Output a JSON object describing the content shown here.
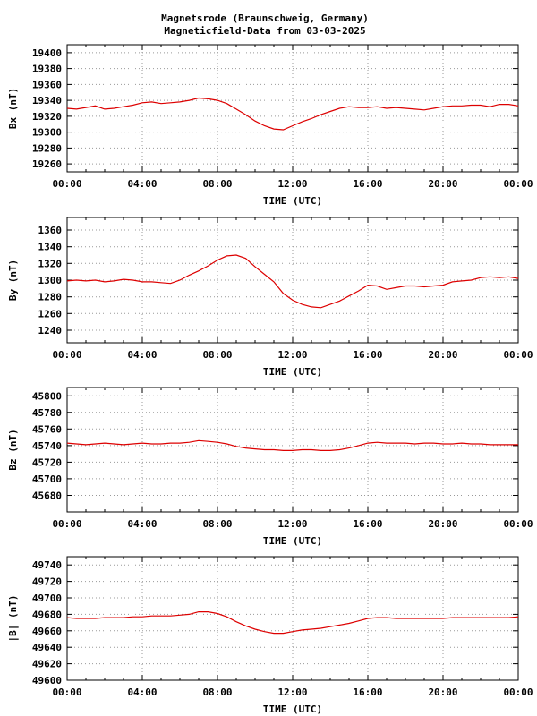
{
  "title_line1": "Magnetsrode (Braunschweig, Germany)",
  "title_line2": "Magneticfield-Data from 03-03-2025",
  "line_color": "#dd0000",
  "chart_data": [
    {
      "type": "line",
      "ylabel": "Bx (nT)",
      "xlabel": "TIME (UTC)",
      "xlim": [
        0,
        24
      ],
      "ylim": [
        19250,
        19410
      ],
      "yticks": [
        19260,
        19280,
        19300,
        19320,
        19340,
        19360,
        19380,
        19400
      ],
      "xtick_labels": [
        "00:00",
        "04:00",
        "08:00",
        "12:00",
        "16:00",
        "20:00",
        "00:00"
      ],
      "grid": true,
      "series": [
        {
          "x": [
            0,
            0.5,
            1,
            1.5,
            2,
            2.5,
            3,
            3.5,
            4,
            4.5,
            5,
            5.5,
            6,
            6.5,
            7,
            7.5,
            8,
            8.5,
            9,
            9.5,
            10,
            10.5,
            11,
            11.5,
            12,
            12.5,
            13,
            13.5,
            14,
            14.5,
            15,
            15.5,
            16,
            16.5,
            17,
            17.5,
            18,
            18.5,
            19,
            19.5,
            20,
            20.5,
            21,
            21.5,
            22,
            22.5,
            23,
            23.5,
            24
          ],
          "y": [
            19330,
            19329,
            19331,
            19333,
            19329,
            19330,
            19332,
            19334,
            19337,
            19338,
            19336,
            19337,
            19338,
            19340,
            19343,
            19342,
            19340,
            19336,
            19329,
            19322,
            19314,
            19308,
            19304,
            19303,
            19308,
            19313,
            19317,
            19322,
            19326,
            19330,
            19332,
            19331,
            19331,
            19332,
            19330,
            19331,
            19330,
            19329,
            19328,
            19330,
            19332,
            19333,
            19333,
            19334,
            19334,
            19332,
            19335,
            19335,
            19333
          ]
        }
      ]
    },
    {
      "type": "line",
      "ylabel": "By (nT)",
      "xlabel": "TIME (UTC)",
      "xlim": [
        0,
        24
      ],
      "ylim": [
        1225,
        1375
      ],
      "yticks": [
        1240,
        1260,
        1280,
        1300,
        1320,
        1340,
        1360
      ],
      "xtick_labels": [
        "00:00",
        "04:00",
        "08:00",
        "12:00",
        "16:00",
        "20:00",
        "00:00"
      ],
      "grid": true,
      "series": [
        {
          "x": [
            0,
            0.5,
            1,
            1.5,
            2,
            2.5,
            3,
            3.5,
            4,
            4.5,
            5,
            5.5,
            6,
            6.5,
            7,
            7.5,
            8,
            8.5,
            9,
            9.5,
            10,
            10.5,
            11,
            11.5,
            12,
            12.5,
            13,
            13.5,
            14,
            14.5,
            15,
            15.5,
            16,
            16.5,
            17,
            17.5,
            18,
            18.5,
            19,
            19.5,
            20,
            20.5,
            21,
            21.5,
            22,
            22.5,
            23,
            23.5,
            24
          ],
          "y": [
            1299,
            1300,
            1299,
            1300,
            1298,
            1299,
            1301,
            1300,
            1298,
            1298,
            1297,
            1296,
            1300,
            1306,
            1311,
            1317,
            1324,
            1329,
            1330,
            1326,
            1316,
            1307,
            1298,
            1284,
            1276,
            1271,
            1268,
            1267,
            1271,
            1275,
            1281,
            1287,
            1294,
            1293,
            1289,
            1291,
            1293,
            1293,
            1292,
            1293,
            1294,
            1298,
            1299,
            1300,
            1303,
            1304,
            1303,
            1304,
            1302
          ]
        }
      ]
    },
    {
      "type": "line",
      "ylabel": "Bz (nT)",
      "xlabel": "TIME (UTC)",
      "xlim": [
        0,
        24
      ],
      "ylim": [
        45660,
        45810
      ],
      "yticks": [
        45680,
        45700,
        45720,
        45740,
        45760,
        45780,
        45800
      ],
      "xtick_labels": [
        "00:00",
        "04:00",
        "08:00",
        "12:00",
        "16:00",
        "20:00",
        "00:00"
      ],
      "grid": true,
      "series": [
        {
          "x": [
            0,
            0.5,
            1,
            1.5,
            2,
            2.5,
            3,
            3.5,
            4,
            4.5,
            5,
            5.5,
            6,
            6.5,
            7,
            7.5,
            8,
            8.5,
            9,
            9.5,
            10,
            10.5,
            11,
            11.5,
            12,
            12.5,
            13,
            13.5,
            14,
            14.5,
            15,
            15.5,
            16,
            16.5,
            17,
            17.5,
            18,
            18.5,
            19,
            19.5,
            20,
            20.5,
            21,
            21.5,
            22,
            22.5,
            23,
            23.5,
            24
          ],
          "y": [
            45743,
            45742,
            45741,
            45742,
            45743,
            45742,
            45741,
            45742,
            45743,
            45742,
            45742,
            45743,
            45743,
            45744,
            45746,
            45745,
            45744,
            45742,
            45739,
            45737,
            45736,
            45735,
            45735,
            45734,
            45734,
            45735,
            45735,
            45734,
            45734,
            45735,
            45737,
            45740,
            45743,
            45744,
            45743,
            45743,
            45743,
            45742,
            45743,
            45743,
            45742,
            45742,
            45743,
            45742,
            45742,
            45741,
            45741,
            45741,
            45741
          ]
        }
      ]
    },
    {
      "type": "line",
      "ylabel": "|B| (nT)",
      "xlabel": "TIME (UTC)",
      "xlim": [
        0,
        24
      ],
      "ylim": [
        49600,
        49750
      ],
      "yticks": [
        49600,
        49620,
        49640,
        49660,
        49680,
        49700,
        49720,
        49740
      ],
      "xtick_labels": [
        "00:00",
        "04:00",
        "08:00",
        "12:00",
        "16:00",
        "20:00",
        "00:00"
      ],
      "grid": true,
      "series": [
        {
          "x": [
            0,
            0.5,
            1,
            1.5,
            2,
            2.5,
            3,
            3.5,
            4,
            4.5,
            5,
            5.5,
            6,
            6.5,
            7,
            7.5,
            8,
            8.5,
            9,
            9.5,
            10,
            10.5,
            11,
            11.5,
            12,
            12.5,
            13,
            13.5,
            14,
            14.5,
            15,
            15.5,
            16,
            16.5,
            17,
            17.5,
            18,
            18.5,
            19,
            19.5,
            20,
            20.5,
            21,
            21.5,
            22,
            22.5,
            23,
            23.5,
            24
          ],
          "y": [
            49676,
            49675,
            49675,
            49675,
            49676,
            49676,
            49676,
            49677,
            49677,
            49678,
            49678,
            49678,
            49679,
            49680,
            49683,
            49683,
            49681,
            49677,
            49671,
            49666,
            49662,
            49659,
            49657,
            49657,
            49659,
            49661,
            49662,
            49663,
            49665,
            49667,
            49669,
            49672,
            49675,
            49676,
            49676,
            49675,
            49675,
            49675,
            49675,
            49675,
            49675,
            49676,
            49676,
            49676,
            49676,
            49676,
            49676,
            49676,
            49677
          ]
        }
      ]
    }
  ]
}
